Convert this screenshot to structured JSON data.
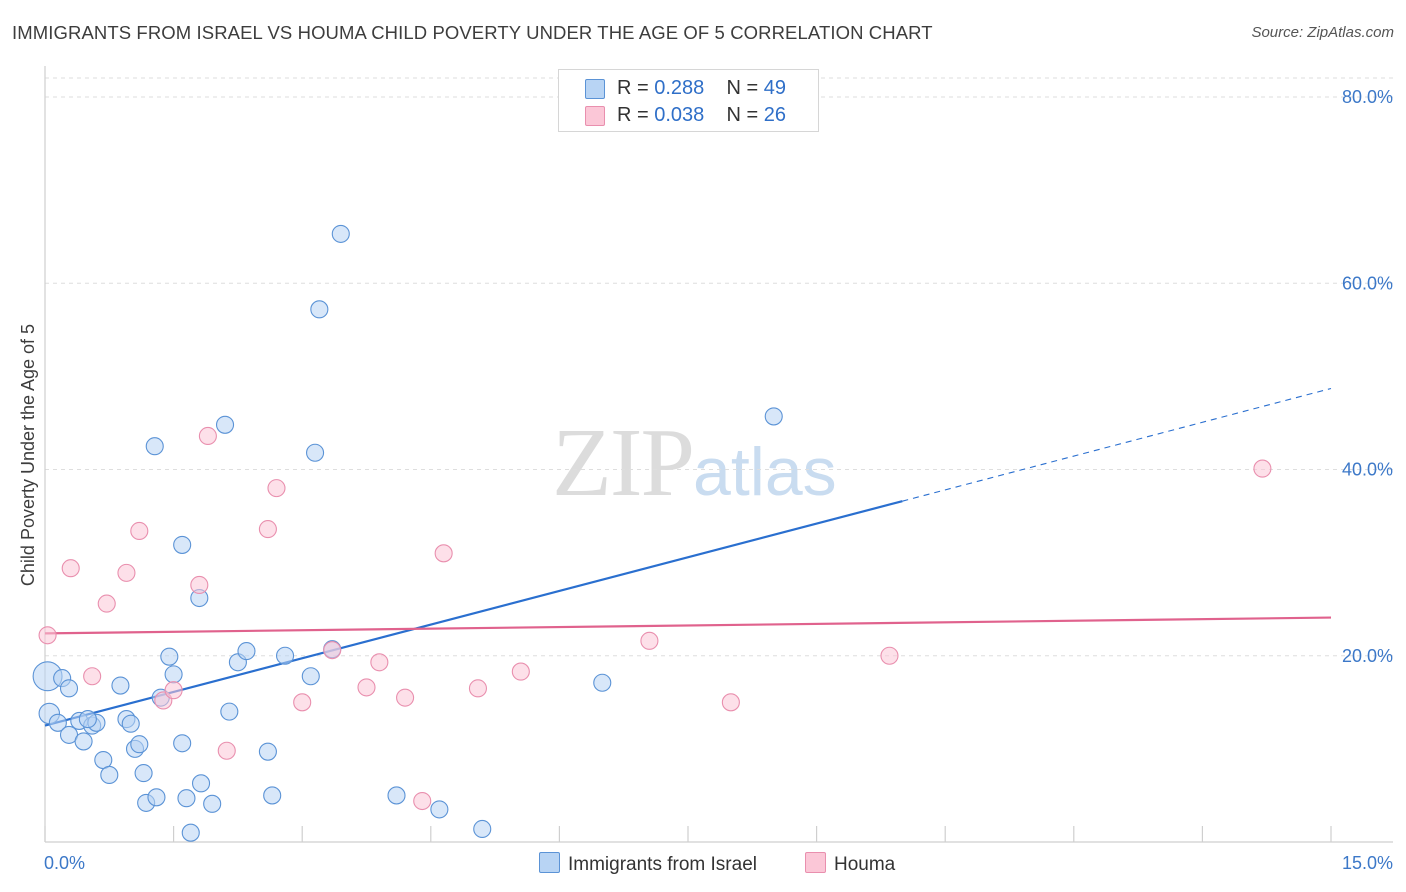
{
  "header": {
    "title": "IMMIGRANTS FROM ISRAEL VS HOUMA CHILD POVERTY UNDER THE AGE OF 5 CORRELATION CHART",
    "source": "Source: ZipAtlas.com"
  },
  "watermark": {
    "zip": "ZIP",
    "atlas": "atlas"
  },
  "legend": {
    "rows": [
      {
        "r_label": "R = ",
        "r_value": "0.288",
        "n_label": "N = ",
        "n_value": "49",
        "color": "#b8d4f4"
      },
      {
        "r_label": "R = ",
        "r_value": "0.038",
        "n_label": "N = ",
        "n_value": "26",
        "color": "#fbc7d7"
      }
    ]
  },
  "bottom_legend": {
    "items": [
      {
        "label": "Immigrants from Israel",
        "color": "#b8d4f4"
      },
      {
        "label": "Houma",
        "color": "#fbc7d7"
      }
    ]
  },
  "chart_data": {
    "type": "scatter",
    "title": "IMMIGRANTS FROM ISRAEL VS HOUMA CHILD POVERTY UNDER THE AGE OF 5 CORRELATION CHART",
    "xlabel": "",
    "ylabel": "Child Poverty Under the Age of 5",
    "xlim": [
      0,
      15
    ],
    "ylim": [
      0,
      83
    ],
    "x_tick_labels": [
      "0.0%",
      "15.0%"
    ],
    "y_ticks": [
      20,
      40,
      60,
      80
    ],
    "y_tick_labels": [
      "20.0%",
      "40.0%",
      "60.0%",
      "80.0%"
    ],
    "grid": true,
    "legend_position": "top-center",
    "series": [
      {
        "name": "Immigrants from Israel",
        "color": "#b8d4f4",
        "stroke": "#5b93d6",
        "trend_color": "#2a6fcf",
        "trend": {
          "x0": 0.0,
          "y0": 12.5,
          "x1": 10.0,
          "y1": 36.6,
          "dash_to_x": 15.0,
          "dash_to_y": 48.7
        },
        "points": [
          {
            "x": 0.03,
            "y": 17.8,
            "s": 1.7
          },
          {
            "x": 0.05,
            "y": 13.8,
            "s": 1.2
          },
          {
            "x": 0.2,
            "y": 17.6
          },
          {
            "x": 0.15,
            "y": 12.8
          },
          {
            "x": 0.28,
            "y": 16.5
          },
          {
            "x": 0.28,
            "y": 11.5
          },
          {
            "x": 0.4,
            "y": 13.0
          },
          {
            "x": 0.45,
            "y": 10.8
          },
          {
            "x": 0.55,
            "y": 12.5
          },
          {
            "x": 0.6,
            "y": 12.8
          },
          {
            "x": 0.68,
            "y": 8.8
          },
          {
            "x": 0.75,
            "y": 7.2
          },
          {
            "x": 0.88,
            "y": 16.8
          },
          {
            "x": 0.95,
            "y": 13.2
          },
          {
            "x": 1.0,
            "y": 12.7
          },
          {
            "x": 1.05,
            "y": 10.0
          },
          {
            "x": 1.1,
            "y": 10.5
          },
          {
            "x": 1.15,
            "y": 7.4
          },
          {
            "x": 1.18,
            "y": 4.2
          },
          {
            "x": 1.3,
            "y": 4.8
          },
          {
            "x": 1.28,
            "y": 42.5
          },
          {
            "x": 1.35,
            "y": 15.5
          },
          {
            "x": 1.45,
            "y": 19.9
          },
          {
            "x": 1.5,
            "y": 18.0
          },
          {
            "x": 1.6,
            "y": 31.9
          },
          {
            "x": 1.6,
            "y": 10.6
          },
          {
            "x": 1.65,
            "y": 4.7
          },
          {
            "x": 1.7,
            "y": 1.0
          },
          {
            "x": 1.8,
            "y": 26.2
          },
          {
            "x": 1.82,
            "y": 6.3
          },
          {
            "x": 1.95,
            "y": 4.1
          },
          {
            "x": 2.1,
            "y": 44.8
          },
          {
            "x": 2.15,
            "y": 14.0
          },
          {
            "x": 2.25,
            "y": 19.3
          },
          {
            "x": 2.35,
            "y": 20.5
          },
          {
            "x": 2.6,
            "y": 9.7
          },
          {
            "x": 2.65,
            "y": 5.0
          },
          {
            "x": 2.8,
            "y": 20.0
          },
          {
            "x": 3.1,
            "y": 17.8
          },
          {
            "x": 3.15,
            "y": 41.8
          },
          {
            "x": 3.2,
            "y": 57.2
          },
          {
            "x": 3.35,
            "y": 20.7
          },
          {
            "x": 3.45,
            "y": 65.3
          },
          {
            "x": 4.1,
            "y": 5.0
          },
          {
            "x": 4.6,
            "y": 3.5
          },
          {
            "x": 5.1,
            "y": 1.4
          },
          {
            "x": 6.5,
            "y": 17.1
          },
          {
            "x": 8.5,
            "y": 45.7
          },
          {
            "x": 0.5,
            "y": 13.2
          }
        ]
      },
      {
        "name": "Houma",
        "color": "#fbc7d7",
        "stroke": "#e98fae",
        "trend_color": "#e0628d",
        "trend": {
          "x0": 0.0,
          "y0": 22.4,
          "x1": 15.0,
          "y1": 24.1
        },
        "points": [
          {
            "x": 0.03,
            "y": 22.2
          },
          {
            "x": 0.3,
            "y": 29.4
          },
          {
            "x": 0.55,
            "y": 17.8
          },
          {
            "x": 0.72,
            "y": 25.6
          },
          {
            "x": 0.95,
            "y": 28.9
          },
          {
            "x": 1.1,
            "y": 33.4
          },
          {
            "x": 1.38,
            "y": 15.2
          },
          {
            "x": 1.5,
            "y": 16.3
          },
          {
            "x": 1.8,
            "y": 27.6
          },
          {
            "x": 1.9,
            "y": 43.6
          },
          {
            "x": 2.12,
            "y": 9.8
          },
          {
            "x": 2.6,
            "y": 33.6
          },
          {
            "x": 2.7,
            "y": 38.0
          },
          {
            "x": 3.0,
            "y": 15.0
          },
          {
            "x": 3.35,
            "y": 20.6
          },
          {
            "x": 3.75,
            "y": 16.6
          },
          {
            "x": 3.9,
            "y": 19.3
          },
          {
            "x": 4.2,
            "y": 15.5
          },
          {
            "x": 4.4,
            "y": 4.4
          },
          {
            "x": 4.65,
            "y": 31.0
          },
          {
            "x": 5.05,
            "y": 16.5
          },
          {
            "x": 5.55,
            "y": 18.3
          },
          {
            "x": 7.05,
            "y": 21.6
          },
          {
            "x": 8.0,
            "y": 15.0
          },
          {
            "x": 9.85,
            "y": 20.0
          },
          {
            "x": 14.2,
            "y": 40.1
          }
        ]
      }
    ]
  }
}
